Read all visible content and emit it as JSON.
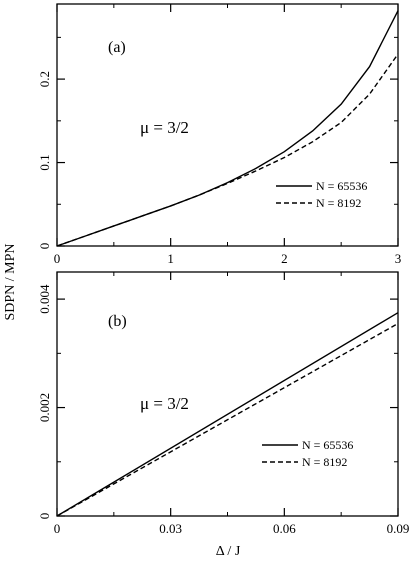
{
  "figure": {
    "ylabel": "SDPN / MPN",
    "xlabel": "Δ / J"
  },
  "chart_data": [
    {
      "type": "line",
      "panel_label": "(a)",
      "annotation": "μ = 3/2",
      "xlim": [
        0,
        3
      ],
      "ylim": [
        0,
        0.29
      ],
      "x_ticks": [
        0,
        1,
        2,
        3
      ],
      "x_tick_labels": [
        "0",
        "1",
        "2",
        "3"
      ],
      "y_ticks": [
        0,
        0.1,
        0.2
      ],
      "y_tick_labels": [
        "0",
        "0.1",
        "0.2"
      ],
      "series": [
        {
          "name": "N = 65536",
          "style": "solid",
          "x": [
            0,
            0.25,
            0.5,
            0.75,
            1.0,
            1.25,
            1.5,
            1.75,
            2.0,
            2.25,
            2.5,
            2.75,
            3.0
          ],
          "y": [
            0,
            0.012,
            0.024,
            0.036,
            0.048,
            0.061,
            0.076,
            0.093,
            0.113,
            0.138,
            0.17,
            0.215,
            0.282
          ]
        },
        {
          "name": "N = 8192",
          "style": "dashed",
          "x": [
            0,
            0.25,
            0.5,
            0.75,
            1.0,
            1.25,
            1.5,
            1.75,
            2.0,
            2.25,
            2.5,
            2.75,
            3.0
          ],
          "y": [
            0,
            0.012,
            0.024,
            0.036,
            0.048,
            0.061,
            0.075,
            0.09,
            0.106,
            0.125,
            0.148,
            0.182,
            0.23
          ]
        }
      ]
    },
    {
      "type": "line",
      "panel_label": "(b)",
      "annotation": "μ = 3/2",
      "xlim": [
        0,
        0.09
      ],
      "ylim": [
        0,
        0.0045
      ],
      "x_ticks": [
        0,
        0.03,
        0.06,
        0.09
      ],
      "x_tick_labels": [
        "0",
        "0.03",
        "0.06",
        "0.09"
      ],
      "y_ticks": [
        0,
        0.002,
        0.004
      ],
      "y_tick_labels": [
        "0",
        "0.002",
        "0.004"
      ],
      "series": [
        {
          "name": "N = 65536",
          "style": "solid",
          "x": [
            0,
            0.09
          ],
          "y": [
            0,
            0.00375
          ]
        },
        {
          "name": "N = 8192",
          "style": "dashed",
          "x": [
            0,
            0.09
          ],
          "y": [
            0,
            0.00355
          ]
        }
      ]
    }
  ]
}
